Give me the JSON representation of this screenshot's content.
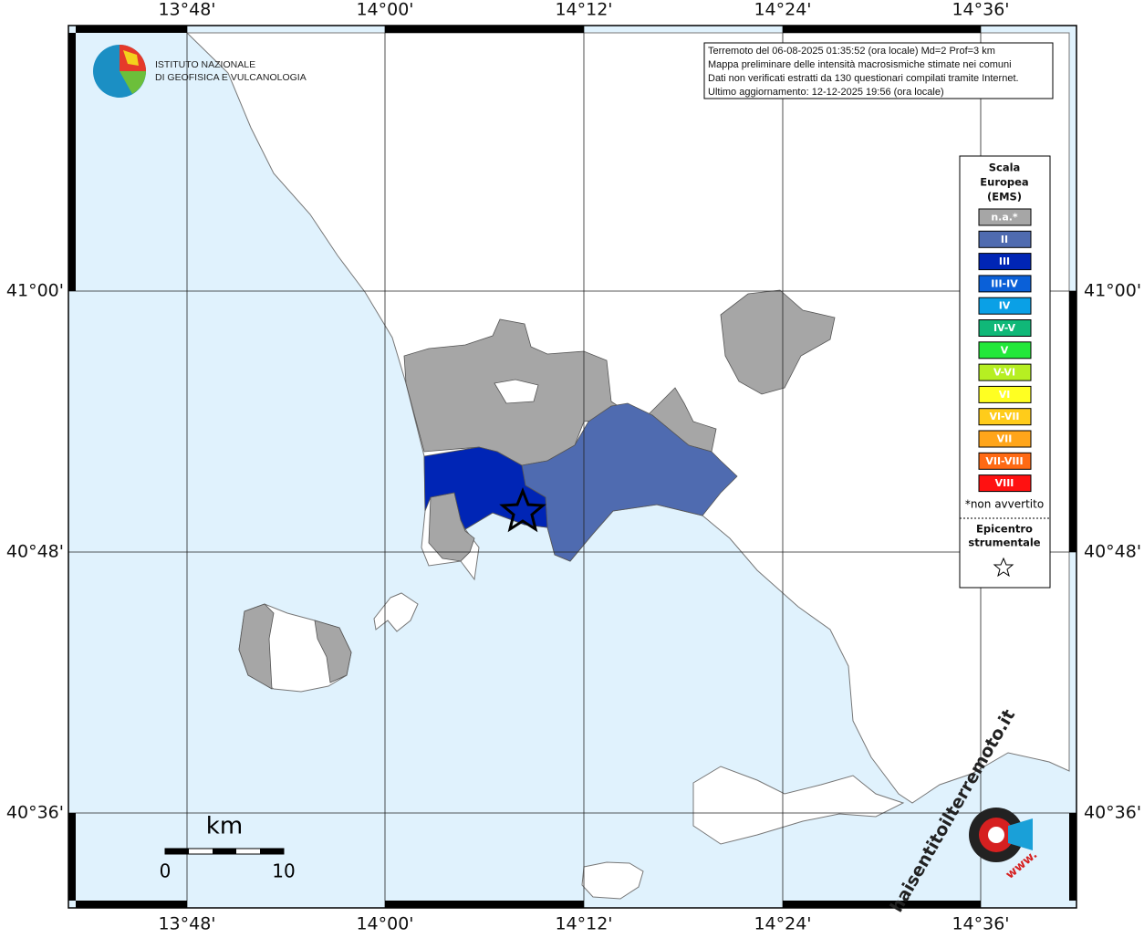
{
  "map": {
    "lon_labels": [
      "13°48'",
      "14°00'",
      "14°12'",
      "14°24'",
      "14°36'"
    ],
    "lat_labels": [
      "41°00'",
      "40°48'",
      "40°36'"
    ],
    "info": [
      "Terremoto del 06-08-2025 01:35:52 (ora locale) Md=2 Prof=3 km",
      "Mappa preliminare delle intensità macrosismiche stimate nei comuni",
      "Dati non verificati estratti da 130 questionari compilati tramite Internet.",
      "Ultimo aggiornamento: 12-12-2025 19:56 (ora locale)"
    ],
    "logo": [
      "ISTITUTO NAZIONALE",
      "DI GEOFISICA E VULCANOLOGIA"
    ],
    "legend": {
      "title": [
        "Scala",
        "Europea",
        "(EMS)"
      ],
      "items": [
        {
          "label": "n.a.*",
          "color": "#a6a6a6"
        },
        {
          "label": "II",
          "color": "#4f6bb0"
        },
        {
          "label": "III",
          "color": "#0025b5"
        },
        {
          "label": "III-IV",
          "color": "#0a60d8"
        },
        {
          "label": "IV",
          "color": "#0aa0e6"
        },
        {
          "label": "IV-V",
          "color": "#10b878"
        },
        {
          "label": "V",
          "color": "#22e83a"
        },
        {
          "label": "V-VI",
          "color": "#b6ef22"
        },
        {
          "label": "VI",
          "color": "#ffff22"
        },
        {
          "label": "VI-VII",
          "color": "#ffcc1a"
        },
        {
          "label": "VII",
          "color": "#ffa51a"
        },
        {
          "label": "VII-VIII",
          "color": "#ff6a14"
        },
        {
          "label": "VIII",
          "color": "#ff1111"
        }
      ],
      "note": "*non avvertito",
      "epicentre": [
        "Epicentro",
        "strumentale"
      ]
    },
    "scale": {
      "unit": "km",
      "start": "0",
      "end": "10"
    },
    "watermark": {
      "site": "haisentitoilterremoto.it",
      "www": "www."
    }
  }
}
